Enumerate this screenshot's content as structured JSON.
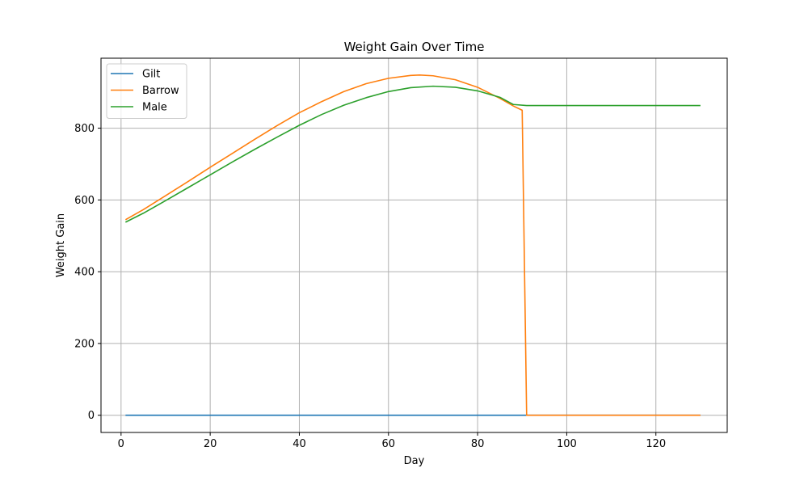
{
  "chart_data": {
    "type": "line",
    "title": "Weight Gain Over Time",
    "xlabel": "Day",
    "ylabel": "Weight Gain",
    "xlim": [
      -4.5,
      136
    ],
    "ylim": [
      -48,
      995
    ],
    "xticks": [
      0,
      20,
      40,
      60,
      80,
      100,
      120
    ],
    "yticks": [
      0,
      200,
      400,
      600,
      800
    ],
    "grid": true,
    "legend_position": "top-left",
    "series": [
      {
        "name": "Gilt",
        "color": "#1f77b4",
        "x": [
          1,
          91,
          130
        ],
        "y": [
          0,
          0,
          0
        ]
      },
      {
        "name": "Barrow",
        "color": "#ff7f0e",
        "x": [
          1,
          5,
          10,
          15,
          20,
          25,
          30,
          35,
          40,
          45,
          50,
          55,
          60,
          65,
          67,
          70,
          75,
          80,
          85,
          88,
          90,
          91,
          95,
          100,
          110,
          120,
          130
        ],
        "y": [
          545,
          573,
          612,
          651,
          691,
          730,
          769,
          807,
          843,
          874,
          902,
          924,
          939,
          947,
          948,
          946,
          935,
          914,
          883,
          862,
          850,
          0,
          0,
          0,
          0,
          0,
          0
        ]
      },
      {
        "name": "Male",
        "color": "#2ca02c",
        "x": [
          1,
          5,
          10,
          15,
          20,
          25,
          30,
          35,
          40,
          45,
          50,
          55,
          60,
          65,
          70,
          75,
          80,
          85,
          88,
          91,
          100,
          110,
          120,
          130
        ],
        "y": [
          538,
          563,
          598,
          634,
          670,
          706,
          741,
          775,
          808,
          838,
          864,
          885,
          902,
          913,
          917,
          914,
          904,
          886,
          866,
          863,
          863,
          863,
          863,
          863
        ]
      }
    ]
  }
}
